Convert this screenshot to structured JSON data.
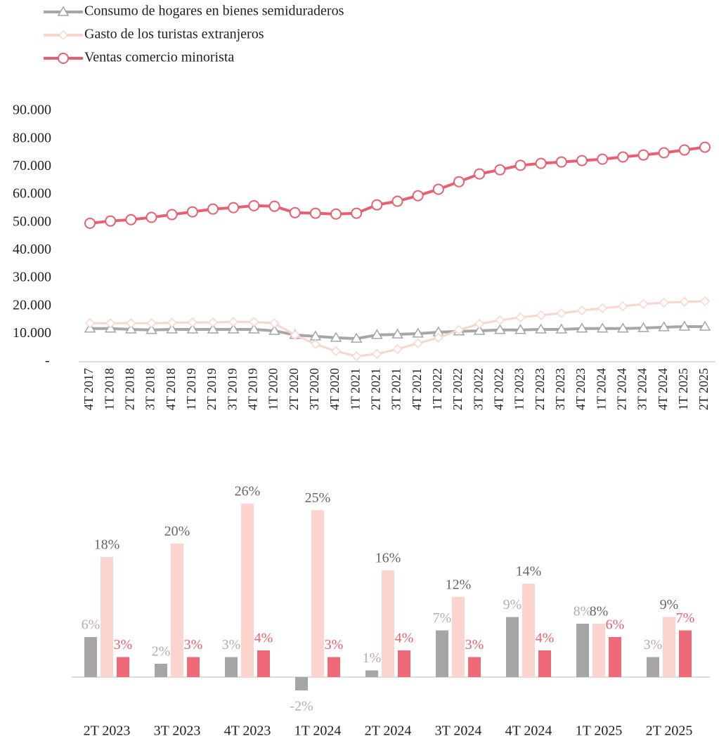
{
  "chart_data": [
    {
      "type": "line",
      "categories": [
        "4T 2017",
        "1T 2018",
        "2T 2018",
        "3T 2018",
        "4T 2018",
        "1T 2019",
        "2T 2019",
        "3T 2019",
        "4T 2019",
        "1T 2020",
        "2T 2020",
        "3T 2020",
        "4T 2020",
        "1T 2021",
        "2T 2021",
        "3T 2021",
        "4T 2021",
        "1T 2022",
        "2T 2022",
        "3T 2022",
        "4T 2022",
        "1T 2023",
        "2T 2023",
        "3T 2023",
        "4T 2023",
        "1T 2024",
        "2T 2024",
        "3T 2024",
        "4T 2024",
        "1T 2025",
        "2T 2025"
      ],
      "series": [
        {
          "name": "Consumo de hogares en bienes semiduraderos",
          "color": "#a6a6a6",
          "marker": "triangle",
          "values": [
            11900,
            11900,
            11600,
            11400,
            11600,
            11600,
            11600,
            11600,
            11600,
            11100,
            9600,
            9100,
            8600,
            8300,
            9600,
            9800,
            10100,
            10600,
            10900,
            11100,
            11400,
            11400,
            11600,
            11600,
            11900,
            11900,
            11900,
            12100,
            12400,
            12600,
            12600
          ]
        },
        {
          "name": "Gasto de los turistas extranjeros",
          "color": "#fbd5cd",
          "marker": "diamond",
          "values": [
            13800,
            13800,
            13800,
            13800,
            14000,
            14100,
            14100,
            14300,
            14300,
            13800,
            9600,
            6300,
            3800,
            2000,
            2800,
            4500,
            6600,
            8600,
            11400,
            13600,
            14900,
            15900,
            16700,
            17400,
            18400,
            19200,
            19900,
            20700,
            21200,
            21500,
            21700
          ]
        },
        {
          "name": "Ventas comercio minorista",
          "color": "#e8606f",
          "marker": "circle",
          "values": [
            49700,
            50500,
            51000,
            51800,
            52800,
            53800,
            54800,
            55300,
            56000,
            55800,
            53500,
            53300,
            53000,
            53300,
            56300,
            57600,
            59600,
            61900,
            64600,
            67400,
            68900,
            70500,
            71200,
            71700,
            72200,
            72700,
            73500,
            74200,
            75000,
            76000,
            77000
          ]
        }
      ],
      "ylim": [
        0,
        90000
      ],
      "yticks": [
        {
          "value": 0,
          "label": "-"
        },
        {
          "value": 10000,
          "label": "10.000"
        },
        {
          "value": 20000,
          "label": "20.000"
        },
        {
          "value": 30000,
          "label": "30.000"
        },
        {
          "value": 40000,
          "label": "40.000"
        },
        {
          "value": 50000,
          "label": "50.000"
        },
        {
          "value": 60000,
          "label": "60.000"
        },
        {
          "value": 70000,
          "label": "70.000"
        },
        {
          "value": 80000,
          "label": "80.000"
        },
        {
          "value": 90000,
          "label": "90.000"
        }
      ],
      "grid": false
    },
    {
      "type": "bar",
      "categories": [
        "2T 2023",
        "3T 2023",
        "4T 2023",
        "1T 2024",
        "2T 2024",
        "3T 2024",
        "4T 2024",
        "1T 2025",
        "2T 2025"
      ],
      "series": [
        {
          "color": "#a6a6a6",
          "values": [
            6,
            2,
            3,
            -2,
            1,
            7,
            9,
            8,
            3
          ],
          "value_labels": [
            "6%",
            "2%",
            "3%",
            "-2%",
            "1%",
            "7%",
            "9%",
            "8%",
            "3%"
          ]
        },
        {
          "color": "#fbd5cd",
          "values": [
            18,
            20,
            26,
            25,
            16,
            12,
            14,
            8,
            9
          ],
          "value_labels": [
            "18%",
            "20%",
            "26%",
            "25%",
            "16%",
            "12%",
            "14%",
            "8%",
            "9%"
          ]
        },
        {
          "color": "#ee6a78",
          "values": [
            3,
            3,
            4,
            3,
            4,
            3,
            4,
            6,
            7
          ],
          "value_labels": [
            "3%",
            "3%",
            "4%",
            "3%",
            "4%",
            "3%",
            "4%",
            "6%",
            "7%"
          ]
        }
      ]
    }
  ]
}
